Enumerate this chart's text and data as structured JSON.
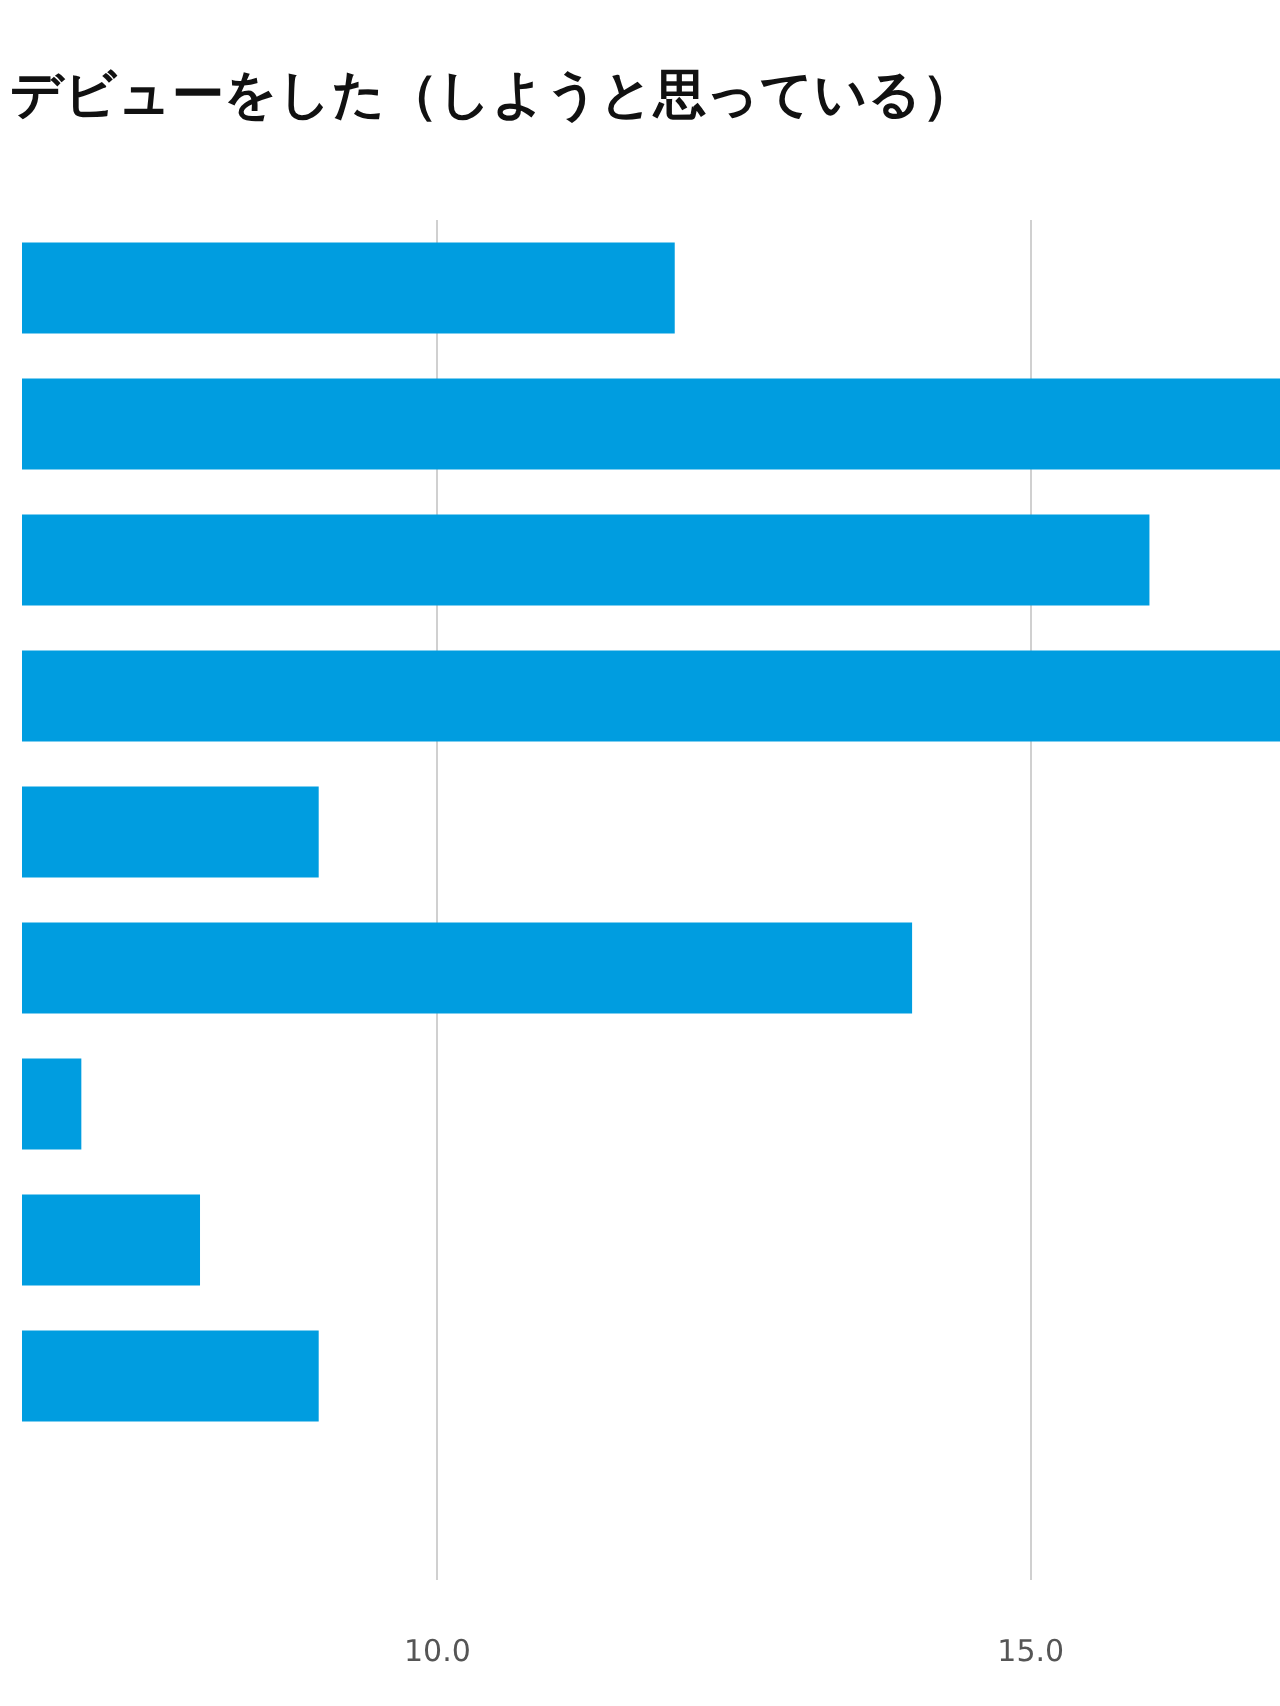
{
  "chart_data": {
    "type": "bar",
    "orientation": "horizontal",
    "title": "デビューをした（しようと思っている）",
    "categories": [
      null,
      null,
      null,
      null,
      null,
      null,
      null,
      null,
      null,
      null
    ],
    "values": [
      12,
      17.1,
      16,
      17.1,
      9,
      14,
      7,
      8,
      9,
      null
    ],
    "color": "#009de0",
    "xlim": [
      6.5,
      17.1
    ],
    "xticks": [
      {
        "value": 10,
        "label": "10.0"
      },
      {
        "value": 15,
        "label": "15.0"
      }
    ],
    "grid": "x"
  }
}
